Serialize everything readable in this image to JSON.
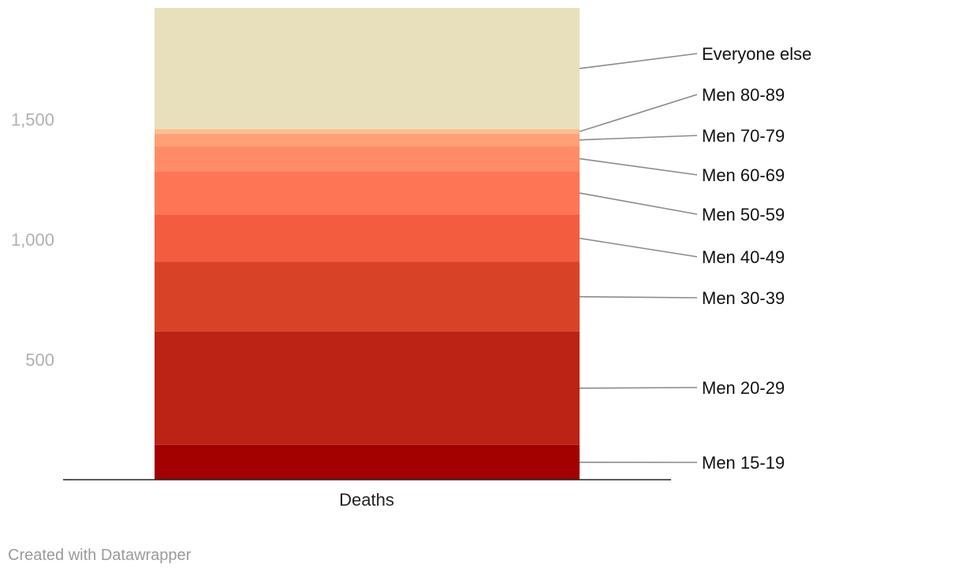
{
  "chart_data": {
    "type": "bar",
    "stacked": true,
    "categories": [
      "Deaths"
    ],
    "series": [
      {
        "name": "Men 15-19",
        "values": [
          145
        ],
        "color": "#a30000"
      },
      {
        "name": "Men 20-29",
        "values": [
          472
        ],
        "color": "#bc2314"
      },
      {
        "name": "Men 30-39",
        "values": [
          290
        ],
        "color": "#d84327"
      },
      {
        "name": "Men 40-49",
        "values": [
          197
        ],
        "color": "#f45c3f"
      },
      {
        "name": "Men 50-59",
        "values": [
          180
        ],
        "color": "#fe7555"
      },
      {
        "name": "Men 60-69",
        "values": [
          106
        ],
        "color": "#ff8c66"
      },
      {
        "name": "Men 70-79",
        "values": [
          50
        ],
        "color": "#ffa077"
      },
      {
        "name": "Men 80-89",
        "values": [
          20
        ],
        "color": "#fbbf8e"
      },
      {
        "name": "Everyone else",
        "values": [
          505
        ],
        "color": "#e8dfbd"
      }
    ],
    "y_ticks": [
      500,
      1000,
      1500
    ],
    "y_tick_labels": [
      "500",
      "1,000",
      "1,500"
    ],
    "ylim": [
      0,
      1965
    ],
    "grid": false
  },
  "footer": "Created with Datawrapper"
}
